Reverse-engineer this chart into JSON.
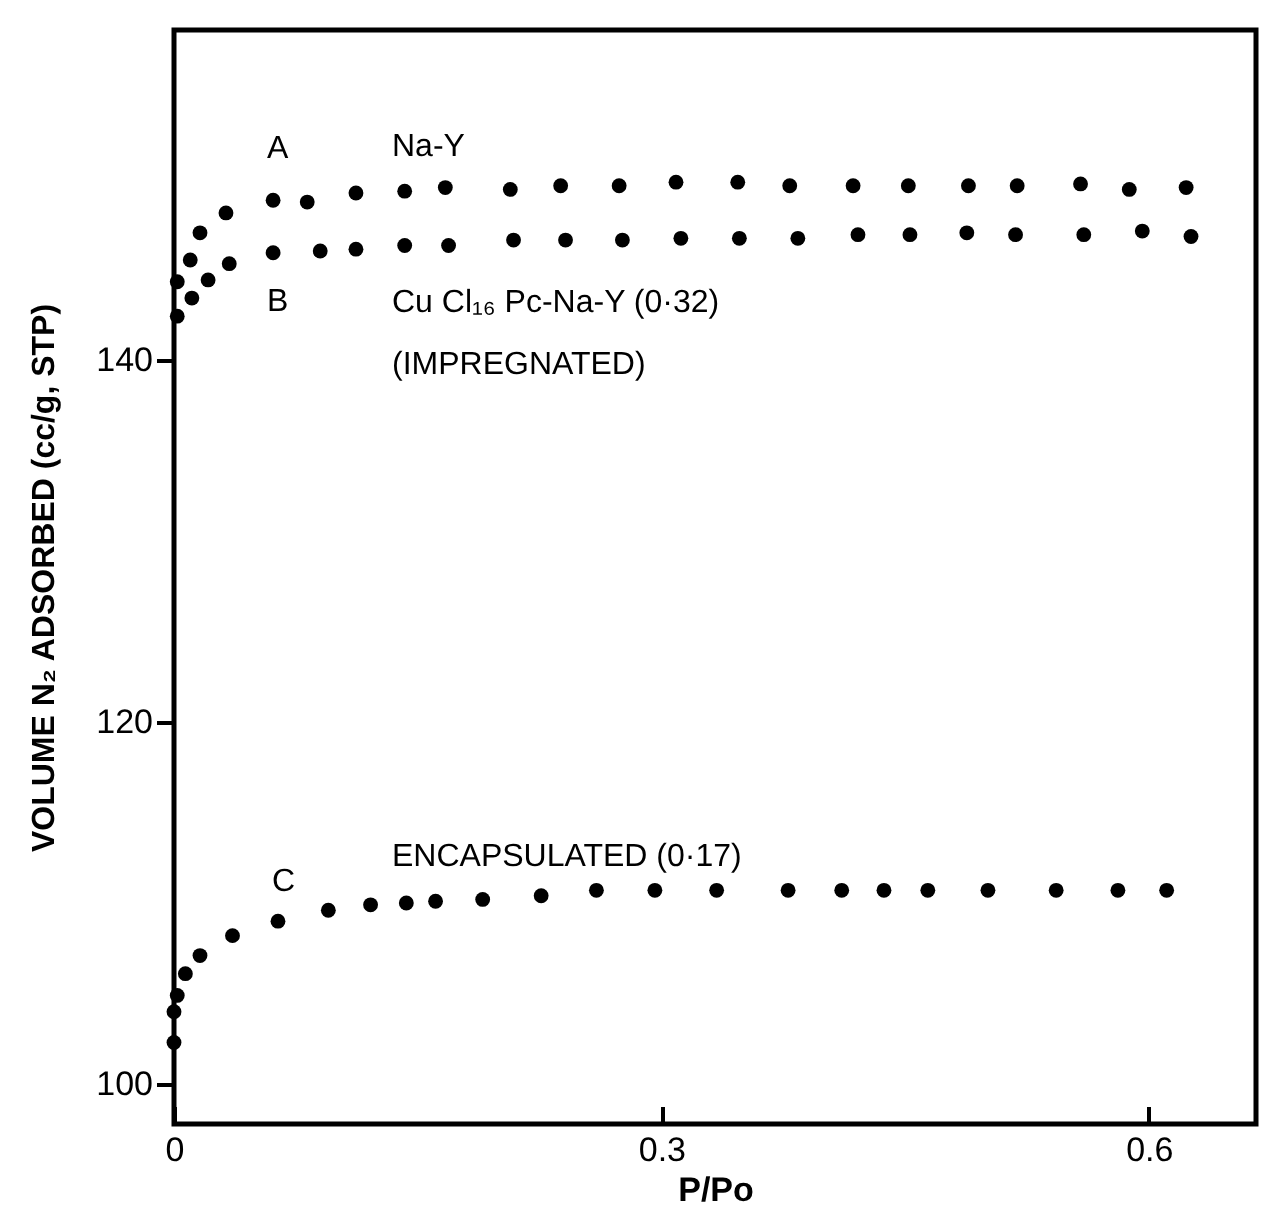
{
  "chart_data": {
    "type": "scatter",
    "xlabel": "P/Po",
    "ylabel": "VOLUME N₂ ADSORBED (cc/g, STP)",
    "xlim": [
      0,
      0.666
    ],
    "ylim": [
      97.8,
      158.2
    ],
    "xticks": [
      0,
      0.3,
      0.6
    ],
    "yticks": [
      100,
      120,
      140
    ],
    "grid": false,
    "marker": "circle",
    "series": [
      {
        "name": "A",
        "color": "#000000",
        "x": [
          0.002,
          0.01,
          0.016,
          0.032,
          0.061,
          0.082,
          0.112,
          0.142,
          0.167,
          0.207,
          0.238,
          0.274,
          0.309,
          0.347,
          0.379,
          0.418,
          0.452,
          0.489,
          0.519,
          0.558,
          0.588,
          0.623
        ],
        "values": [
          144.3,
          145.5,
          147.0,
          148.1,
          148.8,
          148.7,
          149.2,
          149.3,
          149.5,
          149.4,
          149.6,
          149.6,
          149.8,
          149.8,
          149.6,
          149.6,
          149.6,
          149.6,
          149.6,
          149.7,
          149.4,
          149.5
        ]
      },
      {
        "name": "B",
        "color": "#000000",
        "x": [
          0.002,
          0.011,
          0.021,
          0.034,
          0.061,
          0.09,
          0.112,
          0.142,
          0.169,
          0.209,
          0.241,
          0.276,
          0.312,
          0.348,
          0.384,
          0.421,
          0.453,
          0.488,
          0.518,
          0.56,
          0.596,
          0.626
        ],
        "values": [
          142.4,
          143.4,
          144.4,
          145.3,
          145.9,
          146.0,
          146.1,
          146.3,
          146.3,
          146.6,
          146.6,
          146.6,
          146.7,
          146.7,
          146.7,
          146.9,
          146.9,
          147.0,
          146.9,
          146.9,
          147.1,
          146.8
        ]
      },
      {
        "name": "C",
        "color": "#000000",
        "x": [
          0.0,
          0.0,
          0.002,
          0.007,
          0.016,
          0.036,
          0.064,
          0.095,
          0.121,
          0.143,
          0.161,
          0.19,
          0.226,
          0.26,
          0.296,
          0.334,
          0.378,
          0.411,
          0.437,
          0.464,
          0.501,
          0.543,
          0.581,
          0.611
        ],
        "values": [
          102.3,
          104.0,
          104.9,
          106.1,
          107.1,
          108.2,
          109.0,
          109.6,
          109.9,
          110.0,
          110.1,
          110.2,
          110.4,
          110.7,
          110.7,
          110.7,
          110.7,
          110.7,
          110.7,
          110.7,
          110.7,
          110.7,
          110.7,
          110.7
        ]
      }
    ],
    "annotations": [
      "Na-Y",
      "Cu Cl₁₆ Pc-Na-Y (0·32)",
      "(IMPREGNATED)",
      "ENCAPSULATED (0·17)"
    ]
  }
}
